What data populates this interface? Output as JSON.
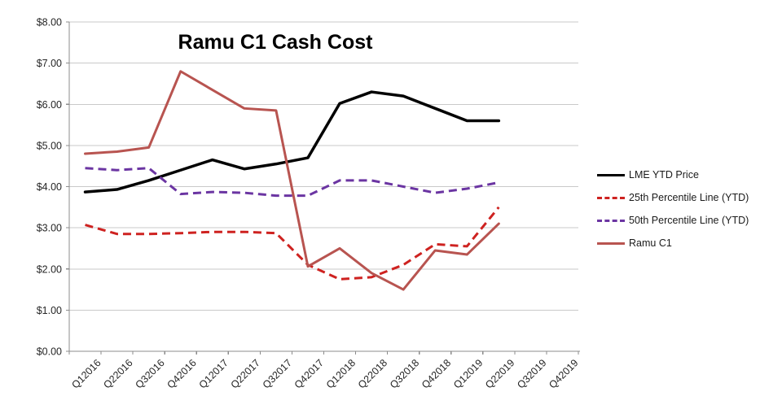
{
  "chart_data": {
    "type": "line",
    "title": "Ramu C1 Cash Cost",
    "categories": [
      "Q12016",
      "Q22016",
      "Q32016",
      "Q42016",
      "Q12017",
      "Q22017",
      "Q32017",
      "Q42017",
      "Q12018",
      "Q22018",
      "Q32018",
      "Q42018",
      "Q12019",
      "Q22019",
      "Q32019",
      "Q42019"
    ],
    "series": [
      {
        "name": "LME YTD Price",
        "color": "#000000",
        "dash": false,
        "width": 3.5,
        "values": [
          3.87,
          3.93,
          4.15,
          4.4,
          4.65,
          4.43,
          4.55,
          4.7,
          6.02,
          6.3,
          6.2,
          5.9,
          5.6,
          5.6
        ]
      },
      {
        "name": "25th Percentile Line (YTD)",
        "color": "#CE2220",
        "dash": true,
        "width": 3,
        "values": [
          3.07,
          2.85,
          2.85,
          2.87,
          2.9,
          2.9,
          2.87,
          2.1,
          1.75,
          1.8,
          2.1,
          2.6,
          2.55,
          3.5
        ]
      },
      {
        "name": "50th Percentile Line (YTD)",
        "color": "#6B35A2",
        "dash": true,
        "width": 3,
        "values": [
          4.45,
          4.4,
          4.45,
          3.82,
          3.87,
          3.85,
          3.78,
          3.78,
          4.15,
          4.15,
          4.0,
          3.85,
          3.95,
          4.1
        ]
      },
      {
        "name": "Ramu C1",
        "color": "#B85450",
        "dash": false,
        "width": 3,
        "values": [
          4.8,
          4.85,
          4.95,
          6.8,
          6.35,
          5.9,
          5.85,
          2.06,
          2.5,
          1.9,
          1.5,
          2.45,
          2.35,
          3.1
        ]
      }
    ],
    "ylim": [
      0,
      8
    ],
    "y_tick_step": 1,
    "y_tick_labels": [
      "$0.00",
      "$1.00",
      "$2.00",
      "$3.00",
      "$4.00",
      "$5.00",
      "$6.00",
      "$7.00",
      "$8.00"
    ],
    "xlabel": "",
    "ylabel": "",
    "grid": "horizontal",
    "legend_position": "right",
    "colors": {
      "background": "#FFFFFF",
      "gridline": "#C9C9C9",
      "axis": "#8C8C8C",
      "tick_label": "#262626"
    }
  }
}
